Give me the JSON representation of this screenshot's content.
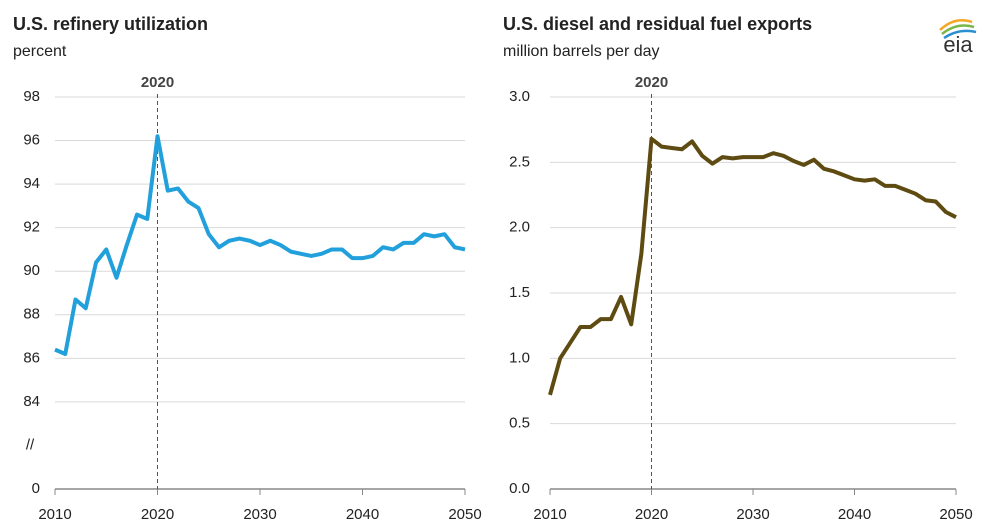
{
  "logo": "eia",
  "chart_data": [
    {
      "type": "line",
      "title": "U.S. refinery utilization",
      "subtitle": "percent",
      "x": [
        2010,
        2011,
        2012,
        2013,
        2014,
        2015,
        2016,
        2017,
        2018,
        2019,
        2020,
        2021,
        2022,
        2023,
        2024,
        2025,
        2026,
        2027,
        2028,
        2029,
        2030,
        2031,
        2032,
        2033,
        2034,
        2035,
        2036,
        2037,
        2038,
        2039,
        2040,
        2041,
        2042,
        2043,
        2044,
        2045,
        2046,
        2047,
        2048,
        2049,
        2050
      ],
      "series": [
        {
          "color": "#21a0db",
          "values": [
            86.4,
            86.2,
            88.7,
            88.3,
            90.4,
            91.0,
            89.7,
            91.2,
            92.6,
            92.4,
            96.2,
            93.7,
            93.8,
            93.2,
            92.9,
            91.7,
            91.1,
            91.4,
            91.5,
            91.4,
            91.2,
            91.4,
            91.2,
            90.9,
            90.8,
            90.7,
            90.8,
            91.0,
            91.0,
            90.6,
            90.6,
            90.7,
            91.1,
            91.0,
            91.3,
            91.3,
            91.7,
            91.6,
            91.7,
            91.1,
            91.0
          ]
        }
      ],
      "xlim": [
        2010,
        2050
      ],
      "xticks": [
        2010,
        2020,
        2030,
        2040,
        2050
      ],
      "ylim": [
        0,
        98
      ],
      "yticks": [
        0,
        84,
        86,
        88,
        90,
        92,
        94,
        96,
        98
      ],
      "axis_break": [
        0,
        84
      ],
      "break_label": "//",
      "vline": 2020,
      "grid": true
    },
    {
      "type": "line",
      "title": "U.S. diesel and residual fuel exports",
      "subtitle": "million barrels per day",
      "x": [
        2010,
        2011,
        2012,
        2013,
        2014,
        2015,
        2016,
        2017,
        2018,
        2019,
        2020,
        2021,
        2022,
        2023,
        2024,
        2025,
        2026,
        2027,
        2028,
        2029,
        2030,
        2031,
        2032,
        2033,
        2034,
        2035,
        2036,
        2037,
        2038,
        2039,
        2040,
        2041,
        2042,
        2043,
        2044,
        2045,
        2046,
        2047,
        2048,
        2049,
        2050
      ],
      "series": [
        {
          "color": "#5e4b12",
          "values": [
            0.72,
            1.0,
            1.12,
            1.24,
            1.24,
            1.3,
            1.3,
            1.47,
            1.26,
            1.8,
            2.68,
            2.62,
            2.61,
            2.6,
            2.66,
            2.55,
            2.49,
            2.54,
            2.53,
            2.54,
            2.54,
            2.54,
            2.57,
            2.55,
            2.51,
            2.48,
            2.52,
            2.45,
            2.43,
            2.4,
            2.37,
            2.36,
            2.37,
            2.32,
            2.32,
            2.29,
            2.26,
            2.21,
            2.2,
            2.12,
            2.08
          ]
        }
      ],
      "xlim": [
        2010,
        2050
      ],
      "xticks": [
        2010,
        2020,
        2030,
        2040,
        2050
      ],
      "ylim": [
        0,
        3
      ],
      "yticks": [
        {
          "value": 0,
          "label": "0.0"
        },
        0.5,
        {
          "value": 1,
          "label": "1.0"
        },
        1.5,
        {
          "value": 2,
          "label": "2.0"
        },
        2.5,
        {
          "value": 3,
          "label": "3.0"
        }
      ],
      "vline": 2020,
      "grid": true
    }
  ]
}
